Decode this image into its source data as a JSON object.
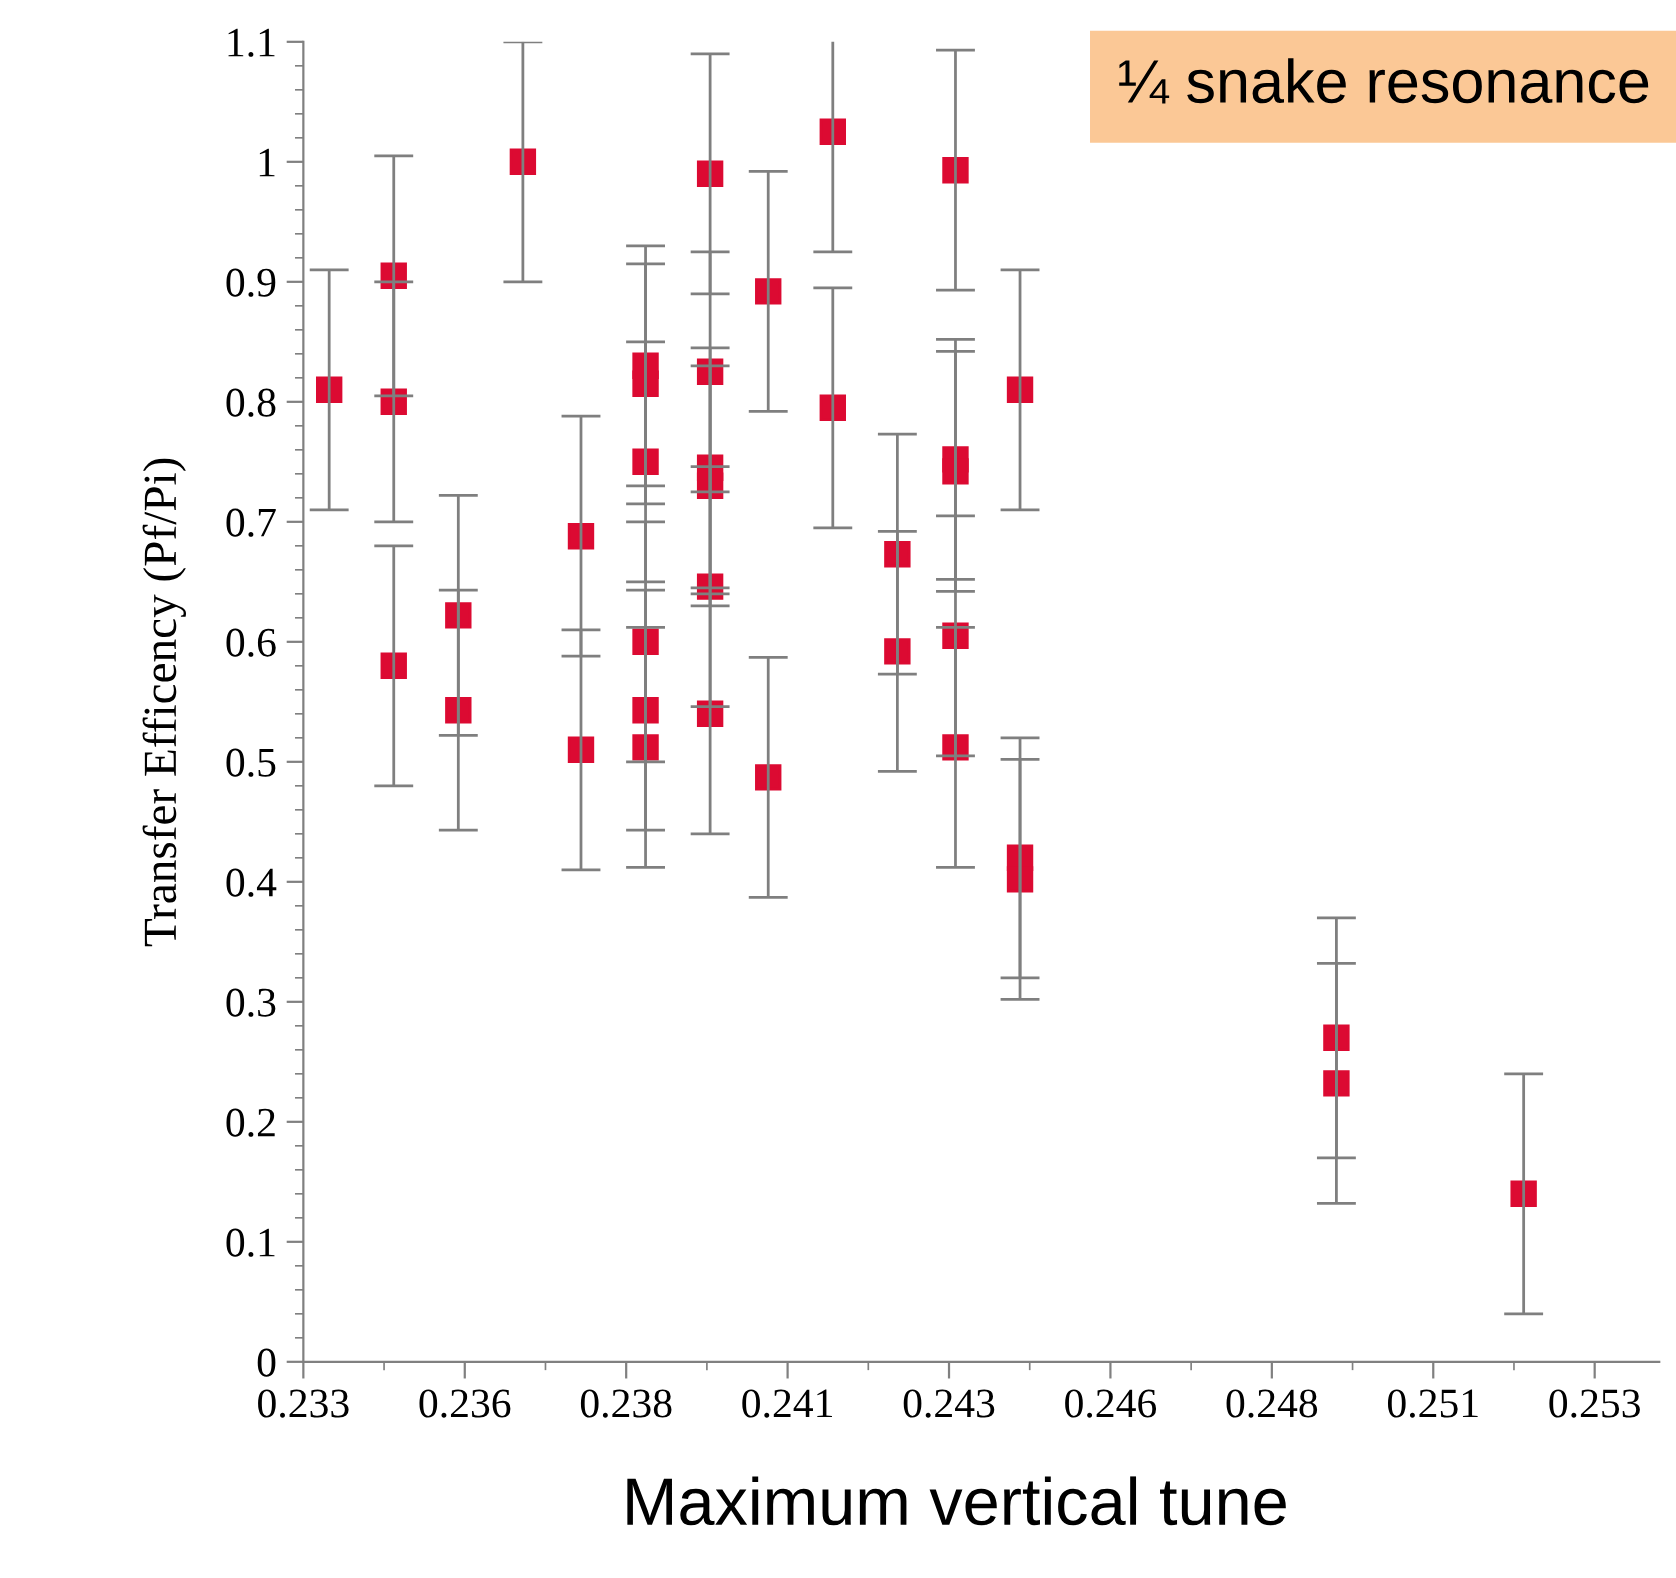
{
  "chart_data": {
    "type": "scatter",
    "xlabel": "Maximum vertical tune",
    "ylabel": "Transfer Efficency (Pf/Pi)",
    "annotations": [
      "¼ snake resonance"
    ],
    "series": [
      {
        "color": "#dc0a32",
        "x": [
          0.2339,
          0.2349,
          0.2349,
          0.2349,
          0.2359,
          0.2359,
          0.2369,
          0.2378,
          0.2378,
          0.2388,
          0.2388,
          0.2388,
          0.2388,
          0.2388,
          0.2388,
          0.2398,
          0.2398,
          0.2398,
          0.2398,
          0.2398,
          0.2398,
          0.2407,
          0.2407,
          0.2417,
          0.2417,
          0.2427,
          0.2427,
          0.2436,
          0.2436,
          0.2436,
          0.2436,
          0.2436,
          0.2446,
          0.2446,
          0.2446,
          0.2495,
          0.2495,
          0.2524
        ],
        "values": [
          0.81,
          0.905,
          0.8,
          0.58,
          0.622,
          0.543,
          1.0,
          0.688,
          0.51,
          0.83,
          0.815,
          0.75,
          0.6,
          0.543,
          0.512,
          0.99,
          0.825,
          0.745,
          0.73,
          0.646,
          0.54,
          0.892,
          0.487,
          1.025,
          0.795,
          0.673,
          0.592,
          0.993,
          0.752,
          0.742,
          0.605,
          0.512,
          0.81,
          0.42,
          0.402,
          0.27,
          0.232,
          0.14
        ],
        "errors": [
          0.1,
          0.1,
          0.1,
          0.1,
          0.1,
          0.1,
          0.1,
          0.1,
          0.1,
          0.1,
          0.1,
          0.1,
          0.1,
          0.1,
          0.1,
          0.1,
          0.1,
          0.1,
          0.1,
          0.1,
          0.1,
          0.1,
          0.1,
          0.1,
          0.1,
          0.1,
          0.1,
          0.1,
          0.1,
          0.1,
          0.1,
          0.1,
          0.1,
          0.1,
          0.1,
          0.1,
          0.1,
          0.1
        ]
      }
    ],
    "marker": "square",
    "grid": false,
    "xlim": [
      0.2335,
      0.2545
    ],
    "xticks": [
      {
        "value": 0.2335,
        "label": "0.233"
      },
      {
        "value": 0.236,
        "label": "0.236"
      },
      {
        "value": 0.2385,
        "label": "0.238"
      },
      {
        "value": 0.241,
        "label": "0.241"
      },
      {
        "value": 0.2435,
        "label": "0.243"
      },
      {
        "value": 0.246,
        "label": "0.246"
      },
      {
        "value": 0.2485,
        "label": "0.248"
      },
      {
        "value": 0.251,
        "label": "0.251"
      },
      {
        "value": 0.2535,
        "label": "0.253"
      }
    ],
    "ylim": [
      0,
      1.1
    ],
    "yticks": [
      0,
      0.1,
      0.2,
      0.3,
      0.4,
      0.5,
      0.6,
      0.7,
      0.8,
      0.9,
      1,
      1.1
    ]
  }
}
